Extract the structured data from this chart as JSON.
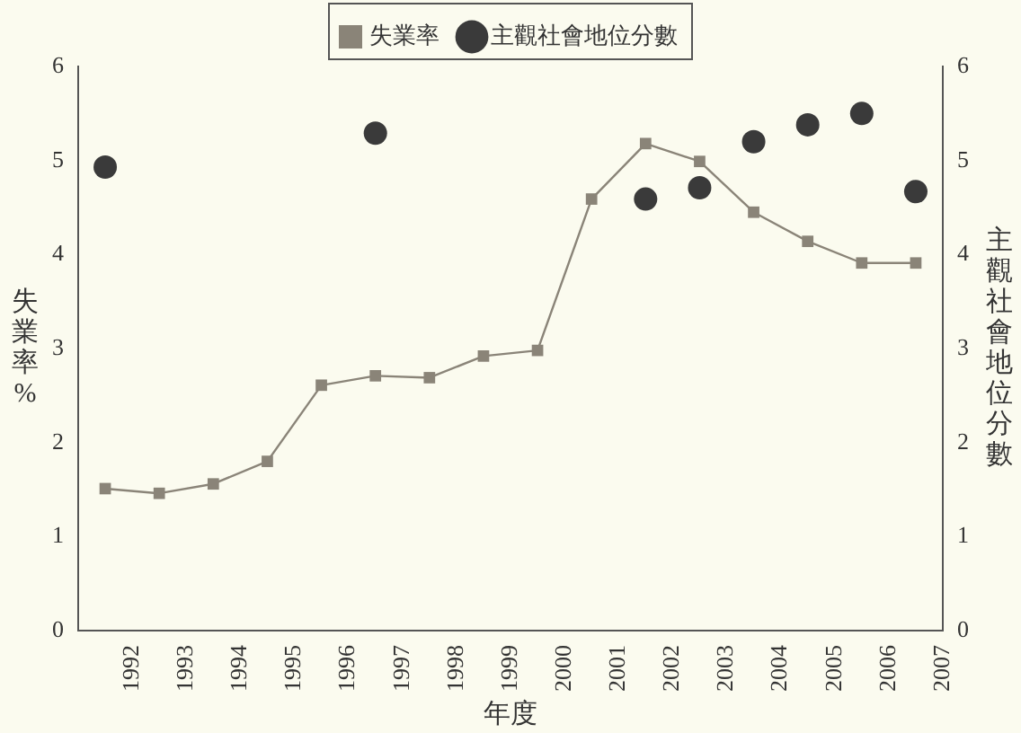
{
  "chart_data": {
    "type": "line",
    "xlabel": "年度",
    "ylabel": "失業率%",
    "y2label": "主觀社會地位分數",
    "xlim": [
      1991,
      2007
    ],
    "xticks": [
      1992,
      1993,
      1994,
      1995,
      1996,
      1997,
      1998,
      1999,
      2000,
      2001,
      2002,
      2003,
      2004,
      2005,
      2006,
      2007
    ],
    "ylim": [
      0,
      6
    ],
    "yticks": [
      0,
      1,
      2,
      3,
      4,
      5,
      6
    ],
    "y2lim": [
      0,
      6
    ],
    "y2ticks": [
      0,
      1,
      2,
      3,
      4,
      5,
      6
    ],
    "grid": false,
    "legend": "top",
    "series": [
      {
        "name": "失業率",
        "type": "line",
        "marker": "square",
        "color": "#8a8478",
        "x": [
          1991.5,
          1992.5,
          1993.5,
          1994.5,
          1995.5,
          1996.5,
          1997.5,
          1998.5,
          1999.5,
          2000.5,
          2001.5,
          2002.5,
          2003.5,
          2004.5,
          2005.5,
          2006.5
        ],
        "values": [
          1.51,
          1.46,
          1.56,
          1.8,
          2.61,
          2.71,
          2.69,
          2.92,
          2.98,
          4.59,
          5.18,
          4.99,
          4.45,
          4.14,
          3.91,
          3.91
        ]
      },
      {
        "name": "主觀社會地位分數",
        "type": "scatter",
        "marker": "circle",
        "axis": "y2",
        "color": "#3a3a3a",
        "x": [
          1991.5,
          1996.5,
          2001.5,
          2002.5,
          2003.5,
          2004.5,
          2005.5,
          2006.5
        ],
        "values": [
          4.93,
          5.29,
          4.59,
          4.71,
          5.2,
          5.38,
          5.5,
          4.67
        ]
      }
    ]
  }
}
